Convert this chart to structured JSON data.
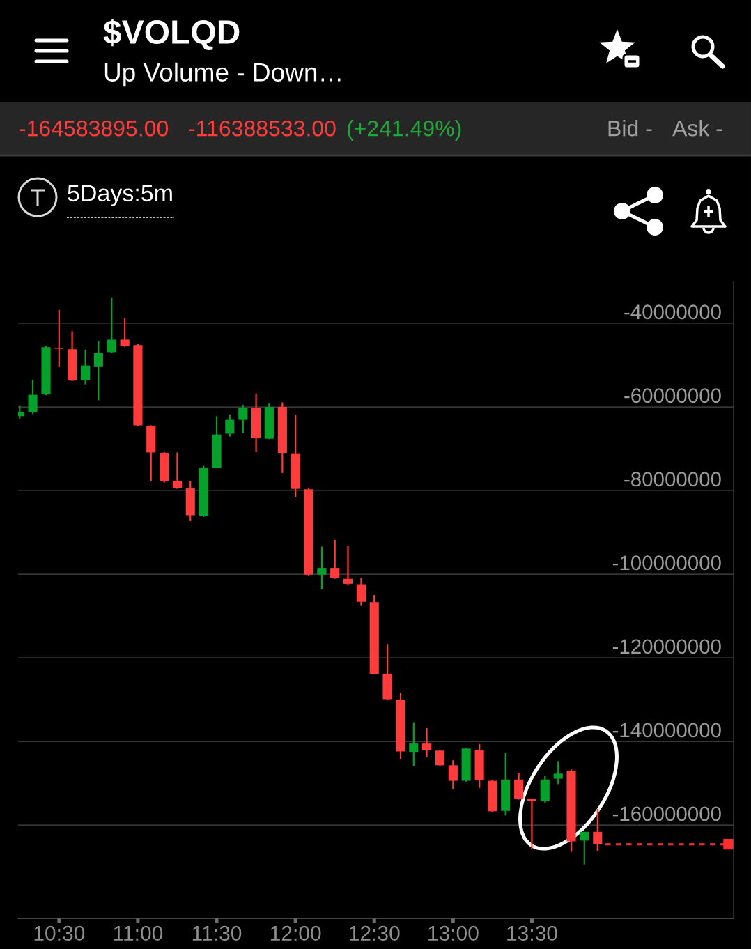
{
  "chart_data": {
    "type": "candlestick",
    "title": "$VOLQD",
    "subtitle": "Up Volume - Down…",
    "annotations": [
      "-164583895.00",
      "-116388533.00",
      "(+241.49%)",
      "Bid -",
      "Ask -",
      "5Days:5m"
    ],
    "x": [
      10.25,
      10.333,
      10.417,
      10.5,
      10.583,
      10.667,
      10.75,
      10.833,
      10.917,
      11.0,
      11.083,
      11.167,
      11.25,
      11.333,
      11.417,
      11.5,
      11.583,
      11.667,
      11.75,
      11.833,
      11.917,
      12.0,
      12.083,
      12.167,
      12.25,
      12.333,
      12.417,
      12.5,
      12.583,
      12.667,
      12.75,
      12.833,
      12.917,
      13.0,
      13.083,
      13.167,
      13.25,
      13.333,
      13.417,
      13.5,
      13.583,
      13.667,
      13.75,
      13.833,
      13.917
    ],
    "ohlc": [
      [
        -62200000,
        -59600000,
        -62800000,
        -61200000
      ],
      [
        -61300000,
        -53500000,
        -61700000,
        -57100000
      ],
      [
        -57000000,
        -45300000,
        -57200000,
        -45700000
      ],
      [
        -45900000,
        -36800000,
        -50400000,
        -46100000
      ],
      [
        -46200000,
        -41900000,
        -53800000,
        -53700000
      ],
      [
        -53600000,
        -46300000,
        -54600000,
        -50100000
      ],
      [
        -50300000,
        -44200000,
        -58400000,
        -47100000
      ],
      [
        -46900000,
        -33800000,
        -47100000,
        -43900000
      ],
      [
        -43900000,
        -38700000,
        -45600000,
        -45400000
      ],
      [
        -45200000,
        -45000000,
        -64600000,
        -64400000
      ],
      [
        -64600000,
        -64400000,
        -77700000,
        -70900000
      ],
      [
        -71000000,
        -70700000,
        -78100000,
        -77700000
      ],
      [
        -77700000,
        -70900000,
        -79600000,
        -79400000
      ],
      [
        -79500000,
        -77700000,
        -87300000,
        -85900000
      ],
      [
        -86000000,
        -74100000,
        -86300000,
        -74600000
      ],
      [
        -74600000,
        -62200000,
        -74700000,
        -66600000
      ],
      [
        -66400000,
        -61800000,
        -67100000,
        -63100000
      ],
      [
        -63100000,
        -59500000,
        -66300000,
        -60200000
      ],
      [
        -60300000,
        -56800000,
        -70800000,
        -67500000
      ],
      [
        -67600000,
        -59200000,
        -67700000,
        -60000000
      ],
      [
        -60000000,
        -58900000,
        -75800000,
        -71000000
      ],
      [
        -71100000,
        -62000000,
        -81600000,
        -79600000
      ],
      [
        -79700000,
        -79500000,
        -100300000,
        -100100000
      ],
      [
        -100100000,
        -93400000,
        -103600000,
        -98500000
      ],
      [
        -98500000,
        -91800000,
        -101100000,
        -100900000
      ],
      [
        -101100000,
        -93300000,
        -102700000,
        -102300000
      ],
      [
        -102400000,
        -100900000,
        -107600000,
        -106600000
      ],
      [
        -106700000,
        -105000000,
        -123900000,
        -123800000
      ],
      [
        -123800000,
        -116700000,
        -130100000,
        -129900000
      ],
      [
        -130000000,
        -128300000,
        -144300000,
        -142400000
      ],
      [
        -142500000,
        -135400000,
        -145900000,
        -140500000
      ],
      [
        -140500000,
        -136800000,
        -143800000,
        -142100000
      ],
      [
        -142200000,
        -142000000,
        -145800000,
        -145700000
      ],
      [
        -145700000,
        -144500000,
        -151400000,
        -149400000
      ],
      [
        -149400000,
        -141500000,
        -149600000,
        -141700000
      ],
      [
        -142000000,
        -140600000,
        -151100000,
        -149300000
      ],
      [
        -149400000,
        -149300000,
        -156800000,
        -156700000
      ],
      [
        -156600000,
        -142800000,
        -157700000,
        -149100000
      ],
      [
        -149100000,
        -147500000,
        -153900000,
        -153800000
      ],
      [
        -153800000,
        -153800000,
        -165800000,
        -154200000
      ],
      [
        -154300000,
        -148200000,
        -154600000,
        -149100000
      ],
      [
        -148900000,
        -144700000,
        -150200000,
        -147700000
      ],
      [
        -147000000,
        -146700000,
        -166400000,
        -163900000
      ],
      [
        -163700000,
        -161600000,
        -169400000,
        -161600000
      ],
      [
        -161600000,
        -156100000,
        -166200000,
        -164583895
      ]
    ],
    "colors": [
      "#05a12b",
      "#05a12b",
      "#05a12b",
      "#ff3b3b",
      "#ff3b3b",
      "#05a12b",
      "#05a12b",
      "#05a12b",
      "#ff3b3b",
      "#ff3b3b",
      "#ff3b3b",
      "#ff3b3b",
      "#ff3b3b",
      "#ff3b3b",
      "#05a12b",
      "#05a12b",
      "#05a12b",
      "#05a12b",
      "#ff3b3b",
      "#05a12b",
      "#ff3b3b",
      "#ff3b3b",
      "#ff3b3b",
      "#05a12b",
      "#ff3b3b",
      "#ff3b3b",
      "#ff3b3b",
      "#ff3b3b",
      "#ff3b3b",
      "#ff3b3b",
      "#05a12b",
      "#ff3b3b",
      "#ff3b3b",
      "#ff3b3b",
      "#05a12b",
      "#ff3b3b",
      "#ff3b3b",
      "#05a12b",
      "#ff3b3b",
      "#ff3b3b",
      "#05a12b",
      "#05a12b",
      "#ff3b3b",
      "#05a12b",
      "#ff3b3b"
    ],
    "xlim": [
      10.24,
      14.78
    ],
    "xticks": [
      {
        "value": 10.5,
        "label": "10:30"
      },
      {
        "value": 11.0,
        "label": "11:00"
      },
      {
        "value": 11.5,
        "label": "11:30"
      },
      {
        "value": 12.0,
        "label": "12:00"
      },
      {
        "value": 12.5,
        "label": "12:30"
      },
      {
        "value": 13.0,
        "label": "13:00"
      },
      {
        "value": 13.5,
        "label": "13:30"
      }
    ],
    "ylim": [
      -182300000,
      -30000000
    ],
    "yticks": [
      -40000000,
      -60000000,
      -80000000,
      -100000000,
      -120000000,
      -140000000,
      -160000000
    ],
    "grid": "y",
    "ref_lines": [
      {
        "axis": "y",
        "value": -164583895,
        "color": "#ff2d2d",
        "line_style": "dashed"
      }
    ]
  }
}
